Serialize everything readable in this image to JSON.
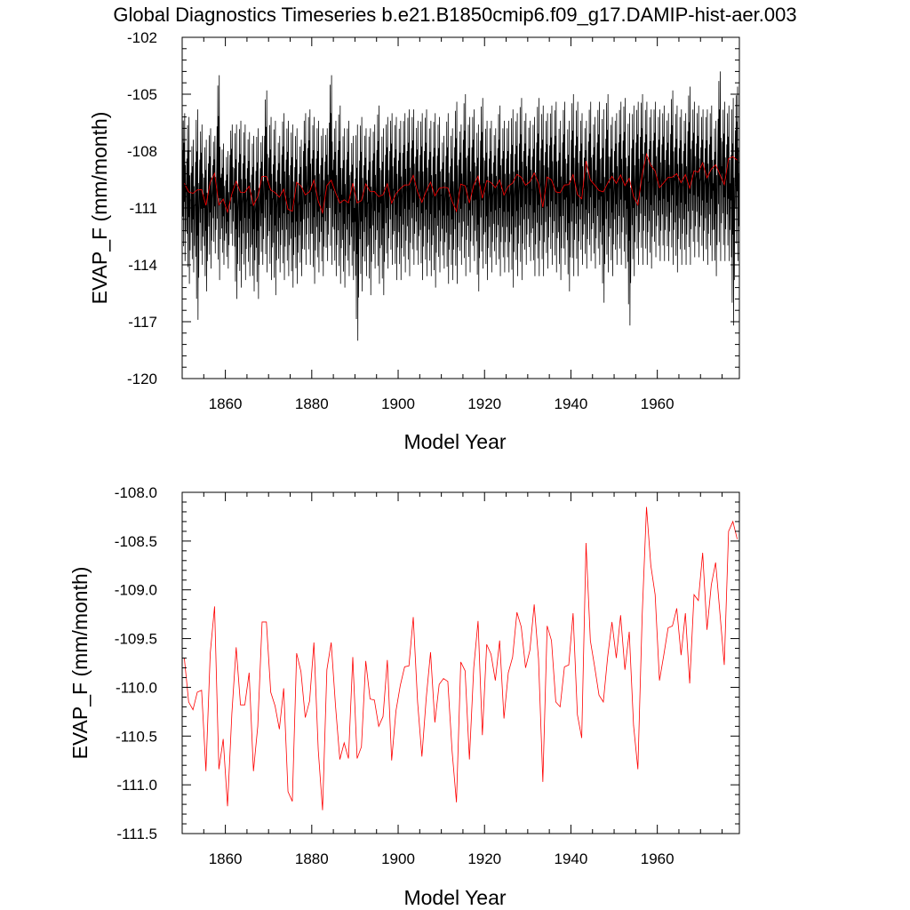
{
  "title": "Global Diagnostics Timeseries b.e21.B1850cmip6.f09_g17.DAMIP-hist-aer.003",
  "chart_data": [
    {
      "type": "line",
      "xlabel": "Model Year",
      "ylabel": "EVAP_F (mm/month)",
      "xlim": [
        1850,
        1979
      ],
      "ylim": [
        -120,
        -102
      ],
      "x_ticks": [
        1860,
        1880,
        1900,
        1920,
        1940,
        1960
      ],
      "x_tick_labels": [
        "1860",
        "1880",
        "1900",
        "1920",
        "1940",
        "1960"
      ],
      "y_ticks": [
        -120,
        -117,
        -114,
        -111,
        -108,
        -105,
        -102
      ],
      "y_tick_labels": [
        "-120",
        "-117",
        "-114",
        "-111",
        "-108",
        "-105",
        "-102"
      ],
      "grid": false,
      "series": [
        {
          "color": "#000000",
          "monthly": true,
          "x_start": 1850,
          "annual_max": [
            -106.0,
            -106.2,
            -107.4,
            -105.8,
            -106.6,
            -107.4,
            -106.8,
            -107.2,
            -104.0,
            -107.6,
            -108.0,
            -106.6,
            -106.6,
            -106.4,
            -106.6,
            -107.0,
            -107.2,
            -106.8,
            -107.2,
            -104.8,
            -106.2,
            -106.4,
            -107.2,
            -106.0,
            -106.4,
            -106.6,
            -106.8,
            -107.4,
            -106.0,
            -105.8,
            -106.2,
            -106.4,
            -106.8,
            -106.8,
            -104.0,
            -106.4,
            -105.6,
            -106.8,
            -106.4,
            -107.2,
            -106.6,
            -106.2,
            -106.8,
            -106.8,
            -106.6,
            -105.6,
            -106.8,
            -106.2,
            -106.0,
            -106.2,
            -106.4,
            -106.0,
            -105.8,
            -105.8,
            -106.4,
            -106.0,
            -105.8,
            -106.4,
            -106.0,
            -106.2,
            -107.2,
            -106.0,
            -106.8,
            -105.4,
            -106.6,
            -105.0,
            -106.2,
            -105.8,
            -106.6,
            -105.2,
            -106.4,
            -106.4,
            -106.8,
            -105.6,
            -106.4,
            -106.4,
            -105.8,
            -106.0,
            -105.2,
            -106.0,
            -106.4,
            -106.2,
            -105.2,
            -105.6,
            -106.0,
            -105.6,
            -105.4,
            -106.4,
            -105.4,
            -106.4,
            -105.0,
            -105.4,
            -106.0,
            -106.4,
            -105.4,
            -106.2,
            -105.4,
            -105.8,
            -105.0,
            -106.2,
            -106.0,
            -105.4,
            -105.2,
            -106.0,
            -105.6,
            -105.4,
            -105.0,
            -105.4,
            -105.8,
            -105.4,
            -105.8,
            -105.6,
            -106.0,
            -104.8,
            -105.6,
            -105.8,
            -106.0,
            -104.6,
            -105.4,
            -105.6,
            -105.8,
            -105.8,
            -105.6,
            -106.4,
            -103.8,
            -105.4,
            -105.6,
            -105.2,
            -104.6
          ],
          "annual_min": [
            -113.8,
            -115.0,
            -114.4,
            -116.9,
            -114.0,
            -115.4,
            -114.2,
            -113.4,
            -114.8,
            -114.0,
            -114.2,
            -113.0,
            -115.8,
            -115.2,
            -114.8,
            -114.6,
            -115.4,
            -115.8,
            -114.0,
            -114.4,
            -114.8,
            -115.6,
            -114.4,
            -114.8,
            -114.6,
            -115.2,
            -115.0,
            -114.6,
            -114.0,
            -114.0,
            -115.0,
            -114.4,
            -114.6,
            -113.8,
            -114.0,
            -114.6,
            -115.0,
            -115.2,
            -114.6,
            -114.8,
            -118.0,
            -115.4,
            -114.6,
            -115.6,
            -114.2,
            -115.0,
            -115.6,
            -114.2,
            -114.0,
            -114.8,
            -114.8,
            -114.4,
            -114.6,
            -114.0,
            -114.0,
            -114.8,
            -114.6,
            -114.6,
            -115.2,
            -114.4,
            -114.2,
            -115.0,
            -114.8,
            -115.0,
            -114.0,
            -114.6,
            -114.4,
            -113.8,
            -115.4,
            -114.2,
            -114.8,
            -114.4,
            -114.0,
            -114.6,
            -114.4,
            -114.4,
            -115.2,
            -114.6,
            -114.8,
            -114.0,
            -113.8,
            -114.6,
            -114.6,
            -114.6,
            -114.2,
            -114.0,
            -114.4,
            -114.8,
            -114.0,
            -115.4,
            -114.6,
            -114.6,
            -114.0,
            -114.2,
            -113.8,
            -114.2,
            -114.0,
            -116.0,
            -114.4,
            -114.6,
            -114.0,
            -114.0,
            -114.2,
            -117.2,
            -114.6,
            -114.0,
            -114.0,
            -114.0,
            -114.2,
            -113.6,
            -113.8,
            -113.8,
            -113.8,
            -114.0,
            -114.4,
            -114.0,
            -114.0,
            -114.0,
            -113.6,
            -113.6,
            -113.8,
            -114.0,
            -113.8,
            -114.6,
            -113.8,
            -113.8,
            -113.8,
            -117.2,
            -113.8,
            -114.4
          ]
        },
        {
          "color": "#ff0000",
          "x_start": 1850,
          "values": [
            -109.7,
            -110.15,
            -110.23,
            -110.05,
            -110.03,
            -110.86,
            -109.65,
            -109.17,
            -110.84,
            -110.53,
            -111.22,
            -110.27,
            -109.59,
            -110.18,
            -110.18,
            -109.85,
            -110.86,
            -110.4,
            -109.33,
            -109.33,
            -110.05,
            -110.19,
            -110.43,
            -110.01,
            -111.07,
            -111.17,
            -109.65,
            -109.84,
            -110.31,
            -110.14,
            -109.54,
            -110.64,
            -111.26,
            -109.82,
            -109.54,
            -110.19,
            -110.74,
            -110.57,
            -110.73,
            -109.69,
            -110.73,
            -110.61,
            -109.73,
            -110.12,
            -110.13,
            -110.4,
            -110.3,
            -109.72,
            -110.75,
            -110.24,
            -109.98,
            -109.79,
            -109.78,
            -109.28,
            -110.15,
            -110.71,
            -110.11,
            -109.64,
            -110.36,
            -109.97,
            -109.91,
            -109.94,
            -110.66,
            -111.18,
            -109.74,
            -109.83,
            -110.74,
            -109.8,
            -109.32,
            -110.49,
            -109.56,
            -109.66,
            -109.93,
            -109.52,
            -110.32,
            -109.85,
            -109.69,
            -109.23,
            -109.38,
            -109.8,
            -109.62,
            -109.15,
            -109.71,
            -110.97,
            -109.37,
            -109.52,
            -110.15,
            -110.2,
            -109.79,
            -109.77,
            -109.24,
            -110.28,
            -110.52,
            -108.52,
            -109.52,
            -109.79,
            -110.08,
            -110.15,
            -109.69,
            -109.33,
            -109.7,
            -109.26,
            -109.82,
            -109.43,
            -110.39,
            -110.84,
            -109.26,
            -108.15,
            -108.75,
            -109.05,
            -109.93,
            -109.67,
            -109.39,
            -109.37,
            -109.19,
            -109.67,
            -109.24,
            -109.96,
            -109.05,
            -109.11,
            -108.62,
            -109.41,
            -108.95,
            -108.72,
            -109.24,
            -109.77,
            -108.4,
            -108.3,
            -108.48
          ]
        }
      ]
    },
    {
      "type": "line",
      "xlabel": "Model Year",
      "ylabel": "EVAP_F (mm/month)",
      "xlim": [
        1850,
        1979
      ],
      "ylim": [
        -111.5,
        -108.0
      ],
      "x_ticks": [
        1860,
        1880,
        1900,
        1920,
        1940,
        1960
      ],
      "x_tick_labels": [
        "1860",
        "1880",
        "1900",
        "1920",
        "1940",
        "1960"
      ],
      "y_ticks": [
        -111.5,
        -111.0,
        -110.5,
        -110.0,
        -109.5,
        -109.0,
        -108.5,
        -108.0
      ],
      "y_tick_labels": [
        "-111.5",
        "-111.0",
        "-110.5",
        "-110.0",
        "-109.5",
        "-109.0",
        "-108.5",
        "-108.0"
      ],
      "grid": false,
      "series": [
        {
          "color": "#ff0000",
          "x_start": 1850,
          "values": [
            -109.7,
            -110.15,
            -110.23,
            -110.05,
            -110.03,
            -110.86,
            -109.65,
            -109.17,
            -110.84,
            -110.53,
            -111.22,
            -110.27,
            -109.59,
            -110.18,
            -110.18,
            -109.85,
            -110.86,
            -110.4,
            -109.33,
            -109.33,
            -110.05,
            -110.19,
            -110.43,
            -110.01,
            -111.07,
            -111.17,
            -109.65,
            -109.84,
            -110.31,
            -110.14,
            -109.54,
            -110.64,
            -111.26,
            -109.82,
            -109.54,
            -110.19,
            -110.74,
            -110.57,
            -110.73,
            -109.69,
            -110.73,
            -110.61,
            -109.73,
            -110.12,
            -110.13,
            -110.4,
            -110.3,
            -109.72,
            -110.75,
            -110.24,
            -109.98,
            -109.79,
            -109.78,
            -109.28,
            -110.15,
            -110.71,
            -110.11,
            -109.64,
            -110.36,
            -109.97,
            -109.91,
            -109.94,
            -110.66,
            -111.18,
            -109.74,
            -109.83,
            -110.74,
            -109.8,
            -109.32,
            -110.49,
            -109.56,
            -109.66,
            -109.93,
            -109.52,
            -110.32,
            -109.85,
            -109.69,
            -109.23,
            -109.38,
            -109.8,
            -109.62,
            -109.15,
            -109.71,
            -110.97,
            -109.37,
            -109.52,
            -110.15,
            -110.2,
            -109.79,
            -109.77,
            -109.24,
            -110.28,
            -110.52,
            -108.52,
            -109.52,
            -109.79,
            -110.08,
            -110.15,
            -109.69,
            -109.33,
            -109.7,
            -109.26,
            -109.82,
            -109.43,
            -110.39,
            -110.84,
            -109.26,
            -108.15,
            -108.75,
            -109.05,
            -109.93,
            -109.67,
            -109.39,
            -109.37,
            -109.19,
            -109.67,
            -109.24,
            -109.96,
            -109.05,
            -109.11,
            -108.62,
            -109.41,
            -108.95,
            -108.72,
            -109.24,
            -109.77,
            -108.4,
            -108.3,
            -108.48
          ]
        }
      ]
    }
  ]
}
